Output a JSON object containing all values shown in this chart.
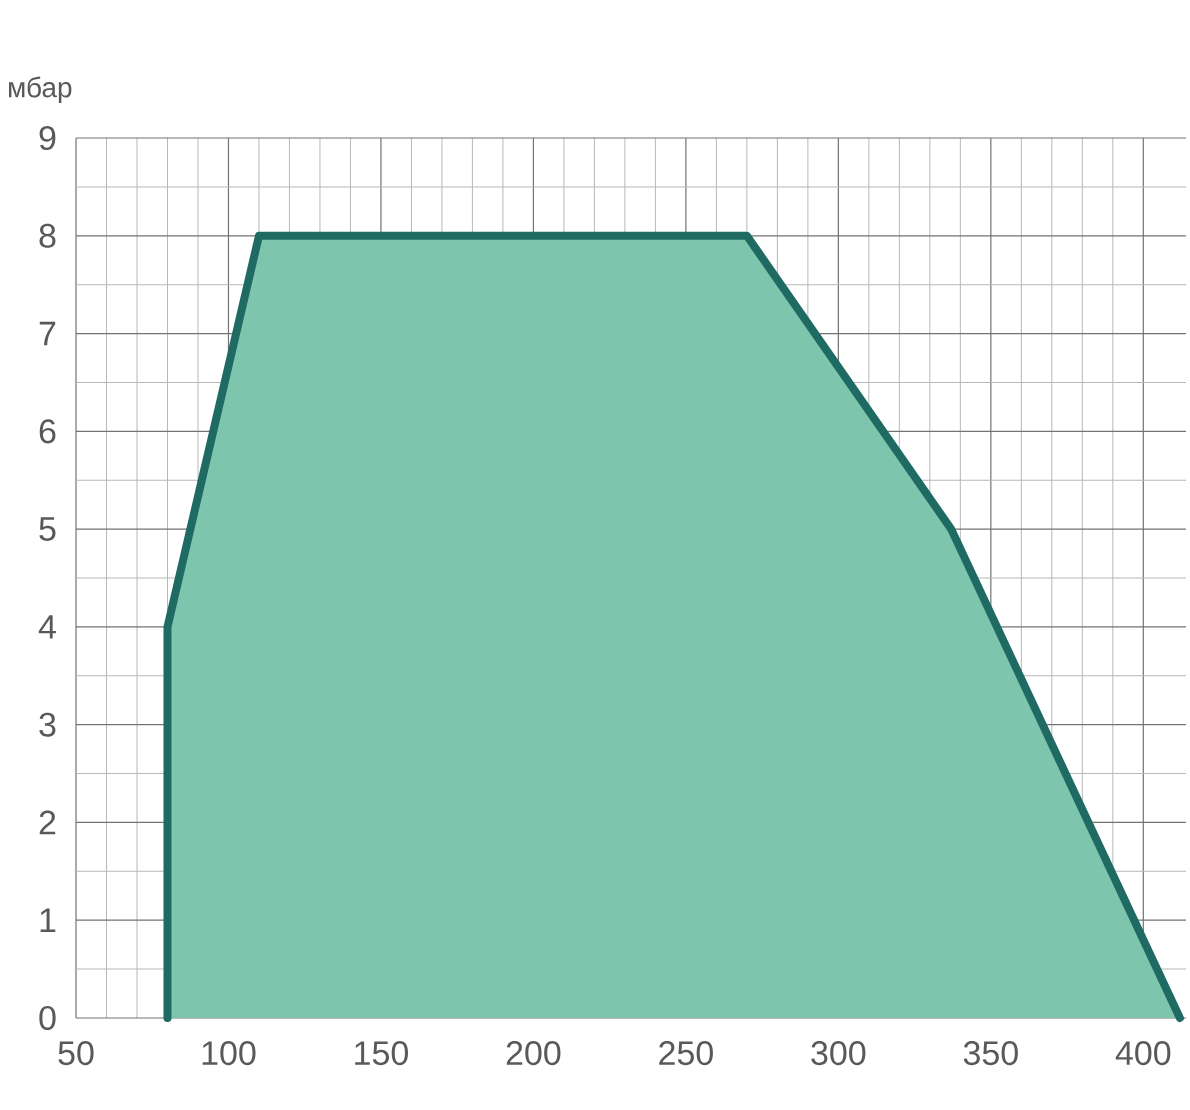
{
  "chart_data": {
    "type": "area",
    "ylabel": "мбар",
    "x": [
      80,
      80,
      110,
      270,
      337,
      412
    ],
    "series": [
      {
        "color": "#7dc5ad",
        "values": [
          0,
          4,
          8,
          8,
          5,
          0
        ]
      }
    ],
    "xlim": [
      50,
      414
    ],
    "ylim": [
      0,
      9
    ],
    "xticks": [
      50,
      100,
      150,
      200,
      250,
      300,
      350,
      400
    ],
    "yticks": [
      0,
      1,
      2,
      3,
      4,
      5,
      6,
      7,
      8,
      9
    ],
    "grid": true
  }
}
